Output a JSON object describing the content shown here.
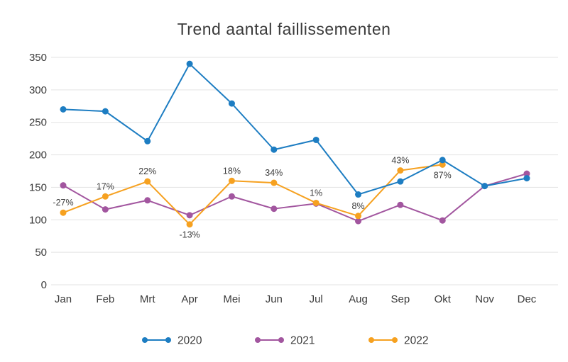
{
  "title": "Trend aantal faillissementen",
  "colors": {
    "background": "#ffffff",
    "grid": "#e3e3e3",
    "axis_text": "#3a3a3a",
    "annotation_text": "#3c3c3c",
    "series_2020": "#1d7dc2",
    "series_2021": "#a2569f",
    "series_2022": "#f6a120"
  },
  "chart_data": {
    "type": "line",
    "title": "Trend aantal faillissementen",
    "x": [
      "Jan",
      "Feb",
      "Mrt",
      "Apr",
      "Mei",
      "Jun",
      "Jul",
      "Aug",
      "Sep",
      "Okt",
      "Nov",
      "Dec"
    ],
    "series": [
      {
        "name": "2020",
        "color": "#1d7dc2",
        "values": [
          270,
          267,
          221,
          340,
          279,
          208,
          223,
          139,
          159,
          192,
          152,
          164
        ]
      },
      {
        "name": "2021",
        "color": "#a2569f",
        "values": [
          153,
          116,
          130,
          107,
          136,
          117,
          125,
          98,
          123,
          99,
          152,
          171
        ]
      },
      {
        "name": "2022",
        "color": "#f6a120",
        "values": [
          111,
          136,
          159,
          93,
          160,
          157,
          126,
          106,
          176,
          185,
          null,
          null
        ]
      }
    ],
    "annotations": [
      {
        "series": "2022",
        "month": "Jan",
        "text": "-27%",
        "position": "above"
      },
      {
        "series": "2022",
        "month": "Feb",
        "text": "17%",
        "position": "above"
      },
      {
        "series": "2022",
        "month": "Mrt",
        "text": "22%",
        "position": "above"
      },
      {
        "series": "2022",
        "month": "Apr",
        "text": "-13%",
        "position": "below"
      },
      {
        "series": "2022",
        "month": "Mei",
        "text": "18%",
        "position": "above"
      },
      {
        "series": "2022",
        "month": "Jun",
        "text": "34%",
        "position": "above"
      },
      {
        "series": "2022",
        "month": "Jul",
        "text": "1%",
        "position": "above"
      },
      {
        "series": "2022",
        "month": "Aug",
        "text": "8%",
        "position": "above"
      },
      {
        "series": "2022",
        "month": "Sep",
        "text": "43%",
        "position": "above"
      },
      {
        "series": "2022",
        "month": "Okt",
        "text": "87%",
        "position": "below"
      }
    ],
    "xlabel": "",
    "ylabel": "",
    "ylim": [
      0,
      350
    ],
    "yticks": [
      0,
      50,
      100,
      150,
      200,
      250,
      300,
      350
    ],
    "grid": "horizontal",
    "legend_position": "bottom",
    "legend": [
      "2020",
      "2021",
      "2022"
    ]
  }
}
